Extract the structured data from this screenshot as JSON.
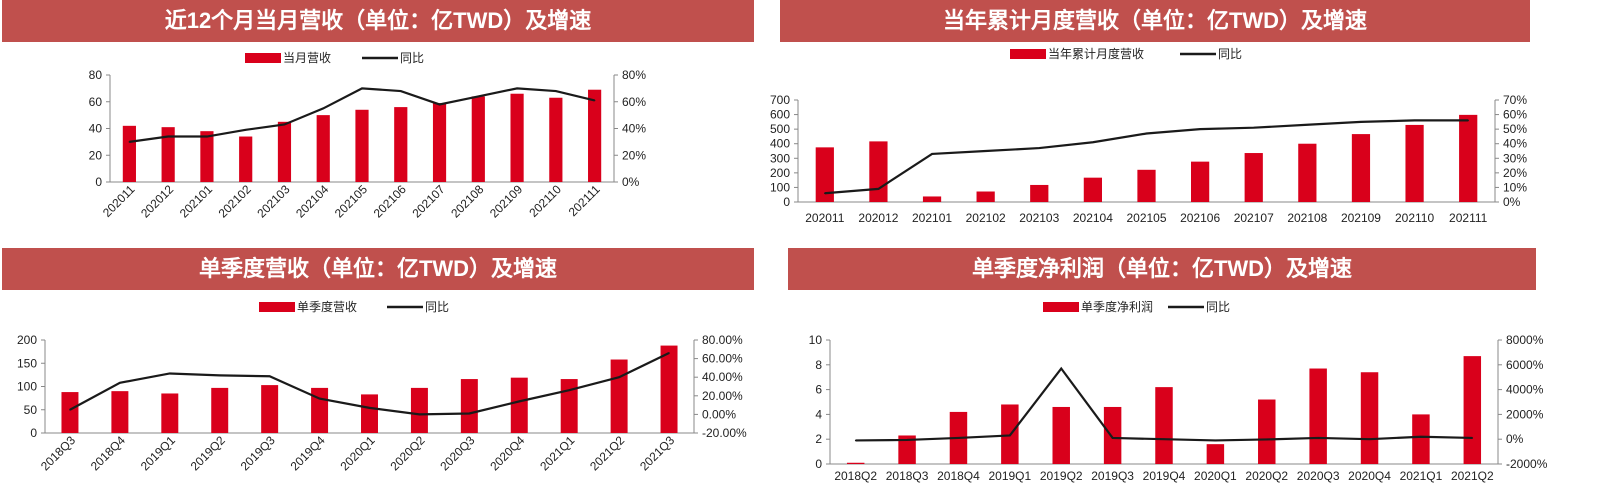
{
  "colors": {
    "title_bg": "#c0504d",
    "bar": "#d9001b",
    "line": "#1a1a1a"
  },
  "chart_data": [
    {
      "type": "bar",
      "title": "近12个月当月营收（单位：亿TWD）及增速",
      "categories": [
        "202011",
        "202012",
        "202101",
        "202102",
        "202103",
        "202104",
        "202105",
        "202106",
        "202107",
        "202108",
        "202109",
        "202110",
        "202111"
      ],
      "series": [
        {
          "name": "当月营收",
          "type": "bar",
          "axis": "left",
          "values": [
            42,
            41,
            38,
            34,
            45,
            50,
            54,
            56,
            59,
            64,
            66,
            63,
            69
          ]
        },
        {
          "name": "同比",
          "type": "line",
          "axis": "right",
          "values": [
            30,
            34,
            34,
            39,
            43,
            55,
            70,
            68,
            58,
            64,
            70,
            68,
            61
          ]
        }
      ],
      "ylim": [
        0,
        80
      ],
      "y_ticks": [
        "0",
        "20",
        "40",
        "60",
        "80"
      ],
      "y2lim": [
        0,
        80
      ],
      "y2_ticks": [
        "0%",
        "20%",
        "40%",
        "60%",
        "80%"
      ],
      "legend_position": "top",
      "x_labels_rotated": true
    },
    {
      "type": "bar",
      "title": "当年累计月度营收（单位：亿TWD）及增速",
      "categories": [
        "202011",
        "202012",
        "202101",
        "202102",
        "202103",
        "202104",
        "202105",
        "202106",
        "202107",
        "202108",
        "202109",
        "202110",
        "202111"
      ],
      "series": [
        {
          "name": "当年累计月度营收",
          "type": "bar",
          "axis": "left",
          "values": [
            375,
            416,
            38,
            72,
            117,
            167,
            221,
            277,
            336,
            400,
            466,
            529,
            598
          ]
        },
        {
          "name": "同比",
          "type": "line",
          "axis": "right",
          "values": [
            6,
            9,
            33,
            35,
            37,
            41,
            47,
            50,
            51,
            53,
            55,
            56,
            56
          ]
        }
      ],
      "ylim": [
        0,
        700
      ],
      "y_ticks": [
        "0",
        "100",
        "200",
        "300",
        "400",
        "500",
        "600",
        "700"
      ],
      "y2lim": [
        0,
        70
      ],
      "y2_ticks": [
        "0%",
        "10%",
        "20%",
        "30%",
        "40%",
        "50%",
        "60%",
        "70%"
      ],
      "legend_position": "top",
      "x_labels_rotated": false
    },
    {
      "type": "bar",
      "title": "单季度营收（单位：亿TWD）及增速",
      "categories": [
        "2018Q3",
        "2018Q4",
        "2019Q1",
        "2019Q2",
        "2019Q3",
        "2019Q4",
        "2020Q1",
        "2020Q2",
        "2020Q3",
        "2020Q4",
        "2021Q1",
        "2021Q2",
        "2021Q3"
      ],
      "series": [
        {
          "name": "单季度营收",
          "type": "bar",
          "axis": "left",
          "values": [
            88,
            90,
            85,
            97,
            103,
            97,
            83,
            97,
            116,
            119,
            116,
            158,
            188
          ]
        },
        {
          "name": "同比",
          "type": "line",
          "axis": "right",
          "values": [
            5,
            34,
            44,
            42,
            41,
            17,
            7,
            0,
            1,
            14,
            26,
            40,
            66
          ]
        }
      ],
      "ylim": [
        0,
        200
      ],
      "y_ticks": [
        "0",
        "50",
        "100",
        "150",
        "200"
      ],
      "y2lim": [
        -20,
        80
      ],
      "y2_ticks": [
        "-20.00%",
        "0.00%",
        "20.00%",
        "40.00%",
        "60.00%",
        "80.00%"
      ],
      "legend_position": "top",
      "x_labels_rotated": true
    },
    {
      "type": "bar",
      "title": "单季度净利润（单位：亿TWD）及增速",
      "categories": [
        "2018Q2",
        "2018Q3",
        "2018Q4",
        "2019Q1",
        "2019Q2",
        "2019Q3",
        "2019Q4",
        "2020Q1",
        "2020Q2",
        "2020Q3",
        "2020Q4",
        "2021Q1",
        "2021Q2"
      ],
      "series": [
        {
          "name": "单季度净利润",
          "type": "bar",
          "axis": "left",
          "values": [
            0.1,
            2.3,
            4.2,
            4.8,
            4.6,
            4.6,
            6.2,
            1.6,
            5.2,
            7.7,
            7.4,
            4.0,
            8.7
          ]
        },
        {
          "name": "同比",
          "type": "line",
          "axis": "right",
          "values": [
            -100,
            -60,
            100,
            300,
            5700,
            100,
            0,
            -100,
            -20,
            100,
            0,
            200,
            100
          ]
        }
      ],
      "ylim": [
        0,
        10
      ],
      "y_ticks": [
        "0",
        "2",
        "4",
        "6",
        "8",
        "10"
      ],
      "y2lim": [
        -2000,
        8000
      ],
      "y2_ticks": [
        "-2000%",
        "0%",
        "2000%",
        "4000%",
        "6000%",
        "8000%"
      ],
      "legend_position": "top",
      "x_labels_rotated": false
    }
  ]
}
